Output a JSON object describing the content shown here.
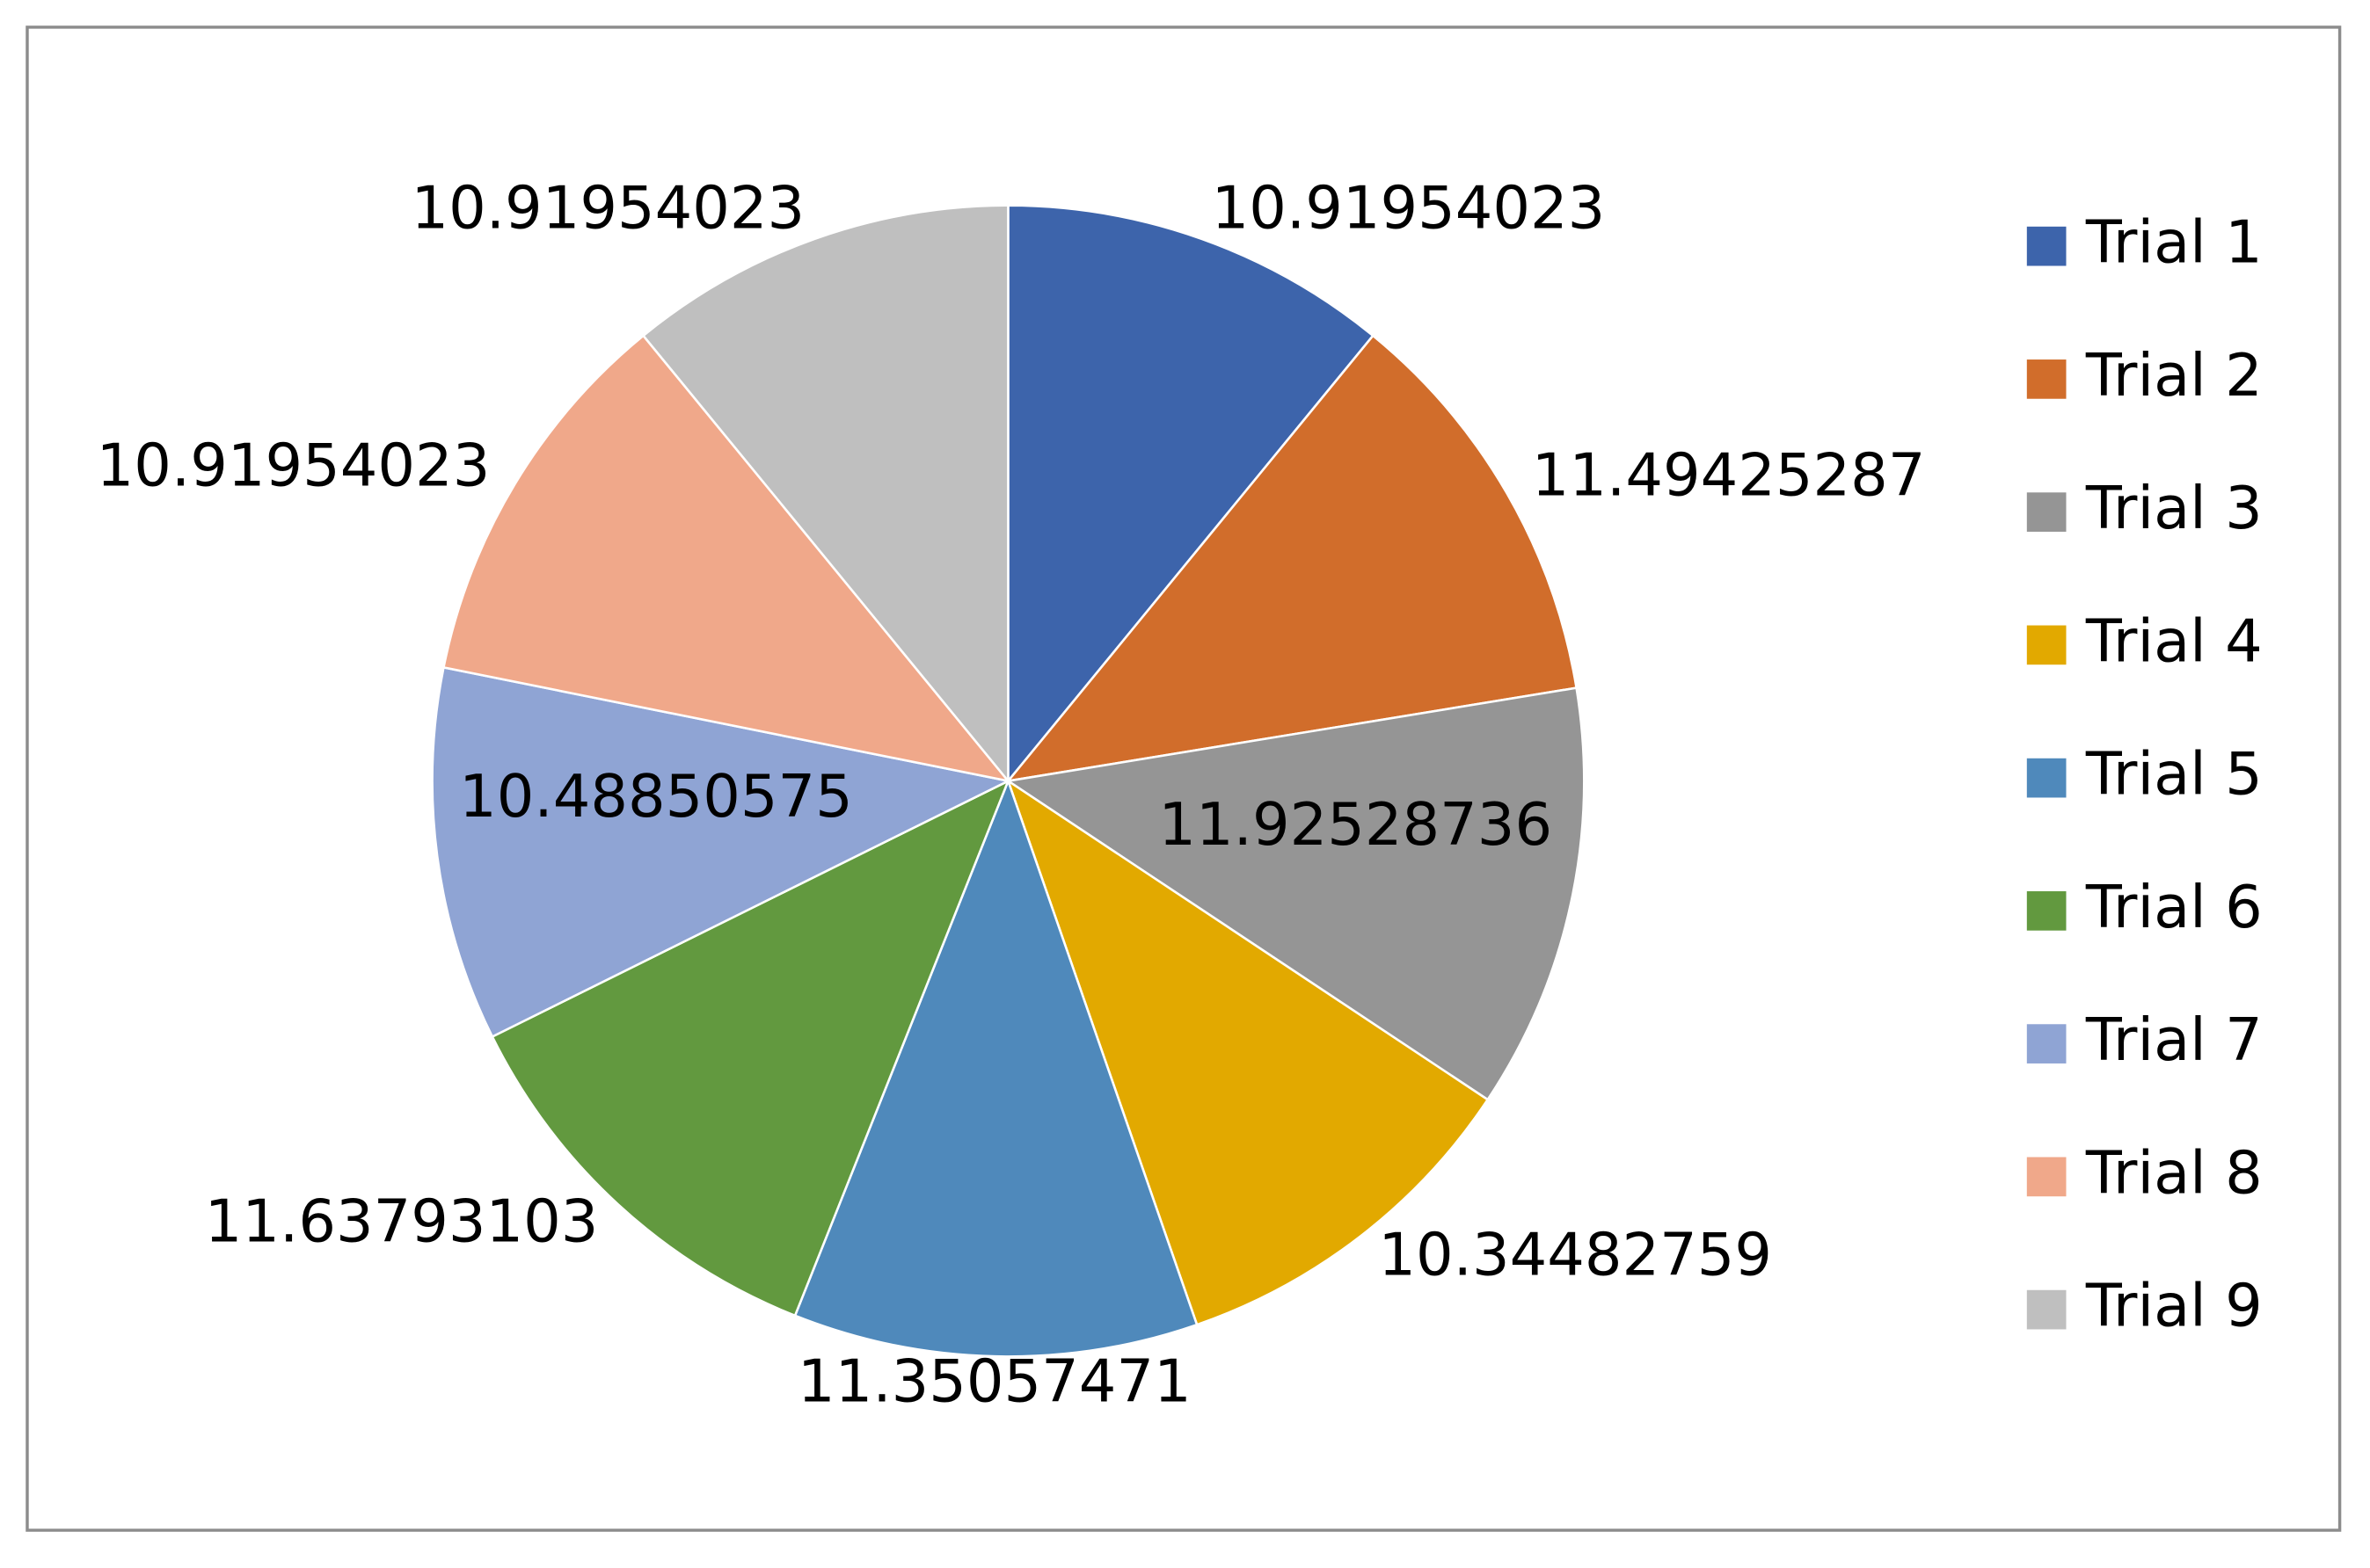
{
  "chart_data": {
    "type": "pie",
    "categories": [
      "Trial 1",
      "Trial 2",
      "Trial 3",
      "Trial 4",
      "Trial 5",
      "Trial 6",
      "Trial 7",
      "Trial 8",
      "Trial 9"
    ],
    "values": [
      10.91954023,
      11.49425287,
      11.92528736,
      10.34482759,
      11.35057471,
      11.63793103,
      10.48850575,
      10.91954023,
      10.91954023
    ],
    "colors": [
      "#3d64ab",
      "#d16d2b",
      "#959595",
      "#e2a900",
      "#4f89bb",
      "#62993f",
      "#8fa4d4",
      "#f0a88a",
      "#bfbfbf"
    ],
    "legend": "right"
  }
}
